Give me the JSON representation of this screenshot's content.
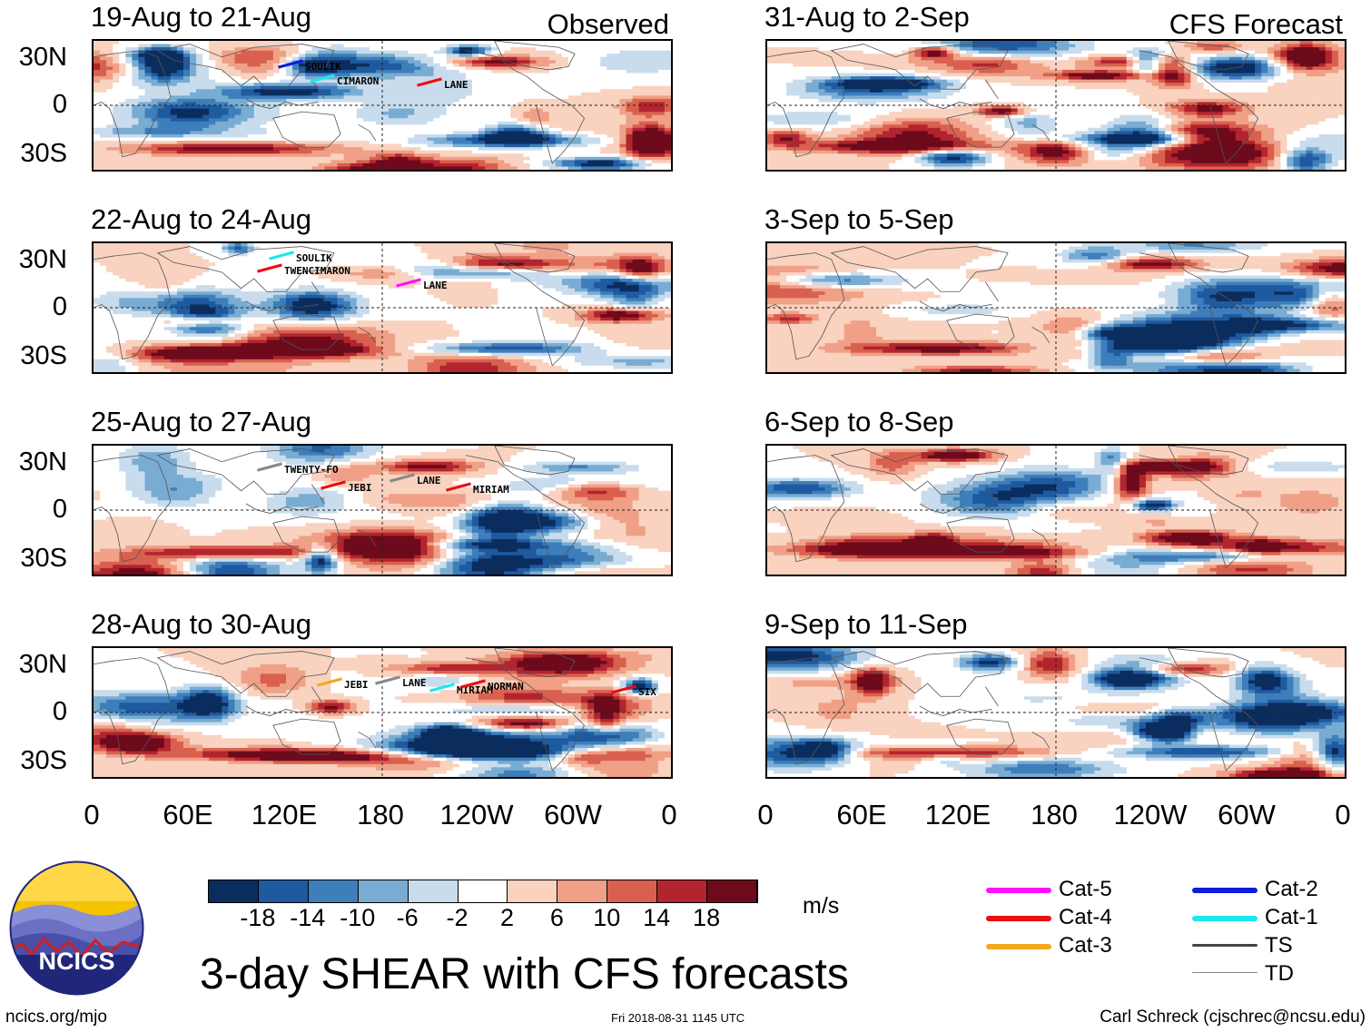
{
  "panels": [
    {
      "title": "19-Aug to 21-Aug",
      "tag": "Observed",
      "col": 0,
      "row": 0,
      "storms": [
        {
          "name": "SOULIK"
        },
        {
          "name": "CIMARON"
        },
        {
          "name": "LANE"
        }
      ]
    },
    {
      "title": "22-Aug to 24-Aug",
      "tag": "",
      "col": 0,
      "row": 1,
      "storms": [
        {
          "name": "SOULIK"
        },
        {
          "name": "TWENCIMARON"
        },
        {
          "name": "LANE"
        }
      ]
    },
    {
      "title": "25-Aug to 27-Aug",
      "tag": "",
      "col": 0,
      "row": 2,
      "storms": [
        {
          "name": "TWENTY-FO"
        },
        {
          "name": "JEBI"
        },
        {
          "name": "LANE"
        },
        {
          "name": "MIRIAM"
        }
      ]
    },
    {
      "title": "28-Aug to 30-Aug",
      "tag": "",
      "col": 0,
      "row": 3,
      "storms": [
        {
          "name": "JEBI"
        },
        {
          "name": "LANE"
        },
        {
          "name": "MIRIAM"
        },
        {
          "name": "NORMAN"
        },
        {
          "name": "SIX"
        }
      ]
    },
    {
      "title": "31-Aug to 2-Sep",
      "tag": "CFS Forecast",
      "col": 1,
      "row": 0,
      "storms": []
    },
    {
      "title": "3-Sep to 5-Sep",
      "tag": "",
      "col": 1,
      "row": 1,
      "storms": []
    },
    {
      "title": "6-Sep to 8-Sep",
      "tag": "",
      "col": 1,
      "row": 2,
      "storms": []
    },
    {
      "title": "9-Sep to 11-Sep",
      "tag": "",
      "col": 1,
      "row": 3,
      "storms": []
    }
  ],
  "lat_labels": [
    "30N",
    "0",
    "30S"
  ],
  "lon_labels": [
    "0",
    "60E",
    "120E",
    "180",
    "120W",
    "60W",
    "0"
  ],
  "colorbar": {
    "colors": [
      "#0b2d5e",
      "#1f5aa0",
      "#3d7ebb",
      "#79acd2",
      "#c8dced",
      "#ffffff",
      "#f9d2c0",
      "#f0a086",
      "#d9604f",
      "#b2242e",
      "#6d0a1c"
    ],
    "labels": [
      "-18",
      "-14",
      "-10",
      "-6",
      "-2",
      "2",
      "6",
      "10",
      "14",
      "18"
    ],
    "units": "m/s"
  },
  "legend": [
    {
      "label": "Cat-5",
      "color": "#ff10ff"
    },
    {
      "label": "Cat-4",
      "color": "#e80f0f"
    },
    {
      "label": "Cat-3",
      "color": "#f2a91e"
    },
    {
      "label": "Cat-2",
      "color": "#0b1ed8"
    },
    {
      "label": "Cat-1",
      "color": "#1ae8ea"
    },
    {
      "label": "TS",
      "color": "#444444"
    },
    {
      "label": "TD",
      "color": "#888888"
    }
  ],
  "main_title": "3-day SHEAR with CFS forecasts",
  "logo_text": "NCICS",
  "footer": {
    "left": "ncics.org/mjo",
    "center": "Fri 2018-08-31 1145 UTC",
    "right": "Carl Schreck (cjschrec@ncsu.edu)"
  },
  "chart_data": {
    "type": "heatmap",
    "title": "3-day SHEAR with CFS forecasts",
    "units": "m/s",
    "value_range": [
      -22,
      22
    ],
    "color_levels": [
      -18,
      -14,
      -10,
      -6,
      -2,
      2,
      6,
      10,
      14,
      18
    ],
    "lon_range": [
      0,
      360
    ],
    "lat_range": [
      -40,
      40
    ],
    "panels_observed": [
      "19-Aug to 21-Aug",
      "22-Aug to 24-Aug",
      "25-Aug to 27-Aug",
      "28-Aug to 30-Aug"
    ],
    "panels_forecast": [
      "31-Aug to 2-Sep",
      "3-Sep to 5-Sep",
      "6-Sep to 8-Sep",
      "9-Sep to 11-Sep"
    ]
  }
}
